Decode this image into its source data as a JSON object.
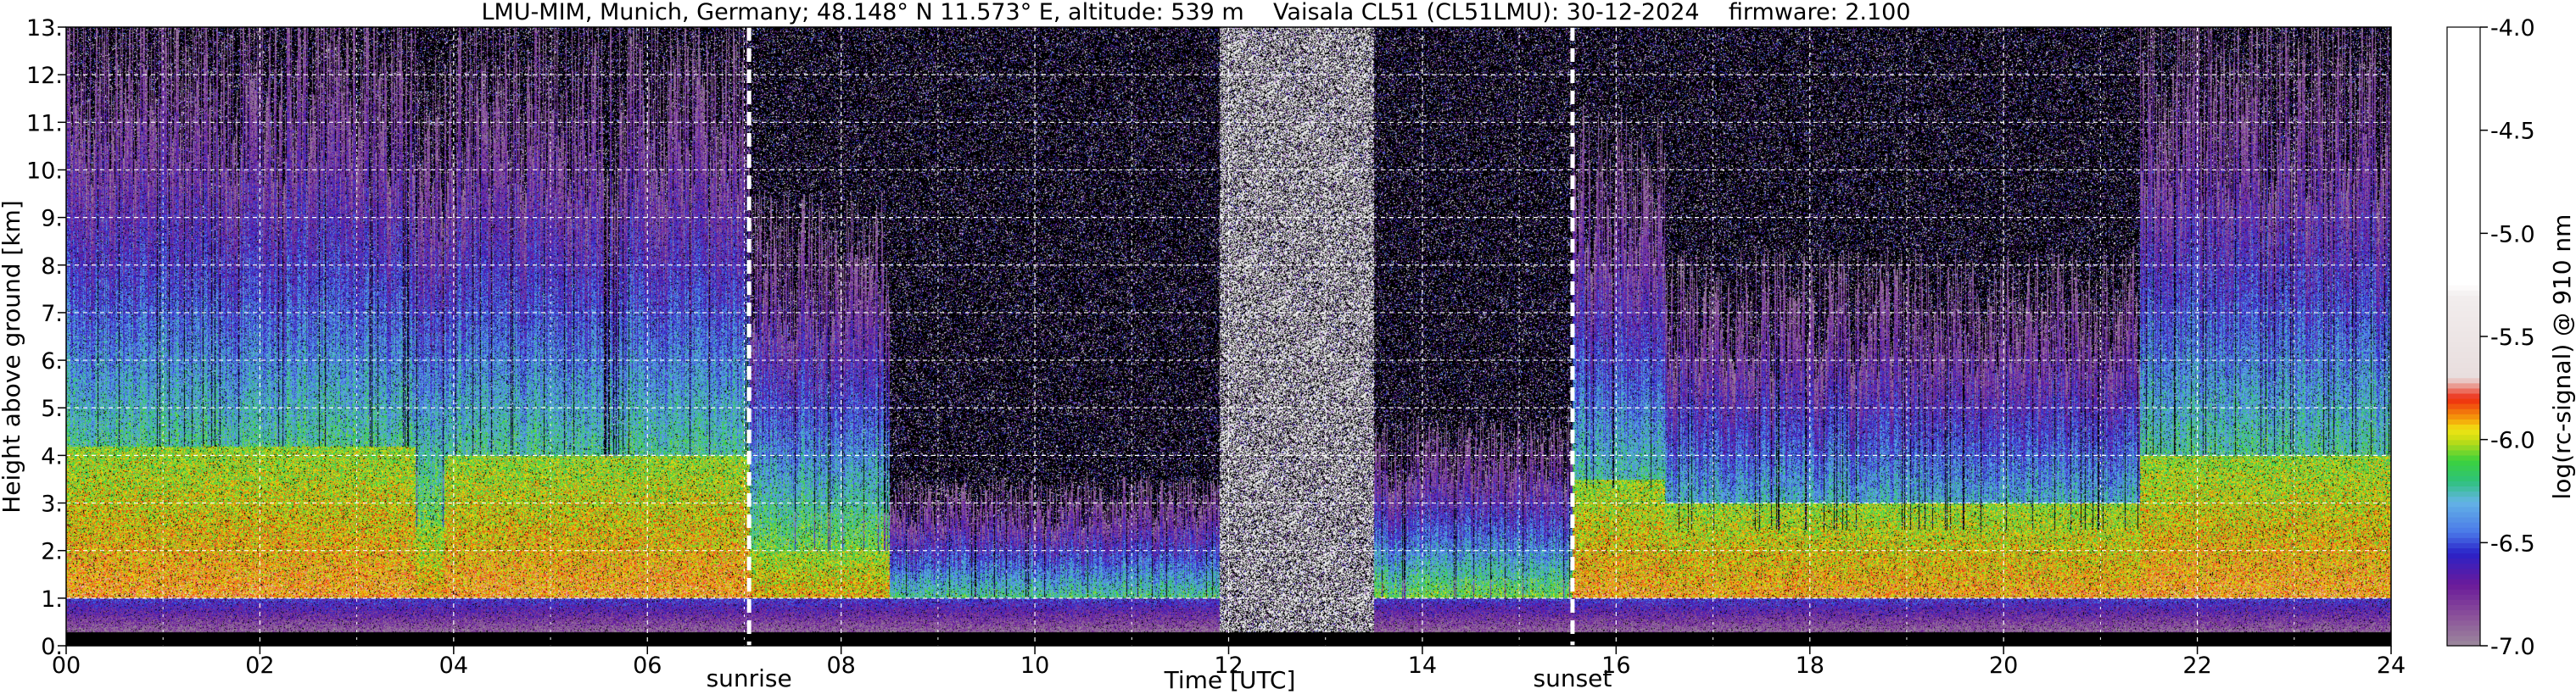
{
  "chart_data": {
    "type": "heatmap",
    "title": "LMU-MIM, Munich, Germany; 48.148° N 11.573° E, altitude: 539 m    Vaisala CL51 (CL51LMU): 30-12-2024    firmware: 2.100",
    "xlabel": "Time [UTC]",
    "ylabel": "Height above ground [km]",
    "colorbar_label": "log(rc-signal) @ 910 nm",
    "xlim": [
      0,
      24
    ],
    "ylim": [
      0,
      13
    ],
    "x_ticks": [
      "00",
      "02",
      "04",
      "06",
      "08",
      "10",
      "12",
      "14",
      "16",
      "18",
      "20",
      "22",
      "24"
    ],
    "y_ticks": [
      "0.",
      "1.",
      "2.",
      "3.",
      "4.",
      "5.",
      "6.",
      "7.",
      "8.",
      "9.",
      "10.",
      "11.",
      "12.",
      "13."
    ],
    "colorbar_range": [
      -7.0,
      -4.0
    ],
    "colorbar_ticks": [
      "-7.0",
      "-6.5",
      "-6.0",
      "-5.5",
      "-5.0",
      "-4.5",
      "-4.0"
    ],
    "grid": true,
    "events": [
      {
        "name": "sunrise",
        "time": 7.05
      },
      {
        "name": "sunset",
        "time": 15.55
      }
    ],
    "colors": {
      "background": "#000000",
      "noise": "#ffffff",
      "grid": "#ffffff"
    },
    "colormap": [
      {
        "value": -7.0,
        "color": "#9c8a9c"
      },
      {
        "value": -6.85,
        "color": "#8a4f9a"
      },
      {
        "value": -6.7,
        "color": "#6a1a9a"
      },
      {
        "value": -6.55,
        "color": "#2a22c8"
      },
      {
        "value": -6.45,
        "color": "#4a78e8"
      },
      {
        "value": -6.3,
        "color": "#64b4e6"
      },
      {
        "value": -6.2,
        "color": "#2ec27a"
      },
      {
        "value": -6.1,
        "color": "#3cd23c"
      },
      {
        "value": -6.0,
        "color": "#c8dc14"
      },
      {
        "value": -5.95,
        "color": "#f0e614"
      },
      {
        "value": -5.9,
        "color": "#f5a00a"
      },
      {
        "value": -5.8,
        "color": "#ee2a10"
      },
      {
        "value": -5.7,
        "color": "#e8dede"
      },
      {
        "value": -5.3,
        "color": "#f2eded"
      },
      {
        "value": -5.25,
        "color": "#ffffff"
      },
      {
        "value": -4.0,
        "color": "#ffffff"
      }
    ],
    "profile_segments": [
      {
        "start": 0.0,
        "end": 3.6,
        "top": 12.0,
        "boundary_layer": 4.2
      },
      {
        "start": 3.6,
        "end": 3.9,
        "top": 10.5,
        "boundary_layer": 2.5
      },
      {
        "start": 3.9,
        "end": 7.05,
        "top": 11.5,
        "boundary_layer": 4.0
      },
      {
        "start": 7.05,
        "end": 8.5,
        "top": 8.0,
        "boundary_layer": 2.0
      },
      {
        "start": 8.5,
        "end": 11.9,
        "top": 3.0,
        "boundary_layer": 0.8
      },
      {
        "start": 11.9,
        "end": 13.5,
        "top": 13.0,
        "boundary_layer": 0.5
      },
      {
        "start": 13.5,
        "end": 15.55,
        "top": 4.0,
        "boundary_layer": 0.6
      },
      {
        "start": 15.55,
        "end": 16.5,
        "top": 9.5,
        "boundary_layer": 3.5
      },
      {
        "start": 16.5,
        "end": 21.4,
        "top": 7.0,
        "boundary_layer": 3.0
      },
      {
        "start": 21.4,
        "end": 24.0,
        "top": 11.5,
        "boundary_layer": 4.0
      }
    ]
  }
}
